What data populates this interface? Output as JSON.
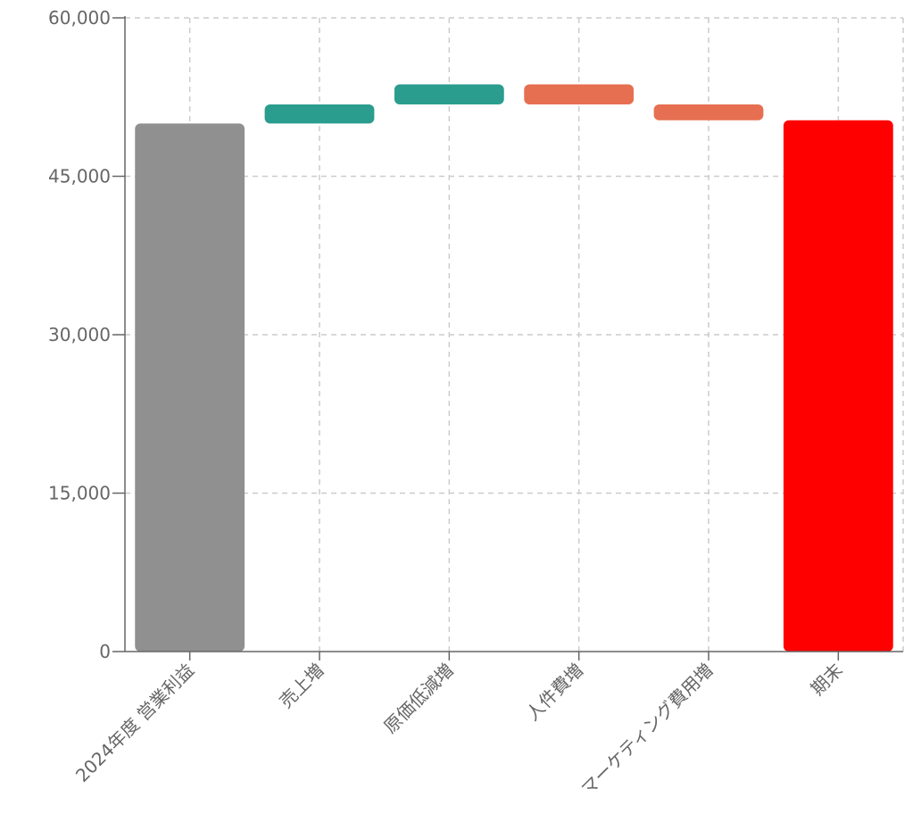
{
  "chart_data": {
    "type": "bar",
    "subtype": "waterfall",
    "title": "",
    "xlabel": "",
    "ylabel": "",
    "ylim": [
      0,
      60000
    ],
    "yticks": [
      0,
      15000,
      30000,
      45000,
      60000
    ],
    "ytick_labels": [
      "0",
      "15,000",
      "30,000",
      "45,000",
      "60,000"
    ],
    "grid": true,
    "categories": [
      "2024年度 営業利益",
      "売上増",
      "原価低減増",
      "人件費増",
      "マーケティング費用増",
      "期末"
    ],
    "bars": [
      {
        "category": "2024年度 営業利益",
        "kind": "total",
        "start": 0,
        "end": 50000,
        "color": "#909090"
      },
      {
        "category": "売上増",
        "kind": "increase",
        "start": 50000,
        "end": 51800,
        "color": "#2a9d8f"
      },
      {
        "category": "原価低減増",
        "kind": "increase",
        "start": 51800,
        "end": 53700,
        "color": "#2a9d8f"
      },
      {
        "category": "人件費増",
        "kind": "decrease",
        "start": 53700,
        "end": 51800,
        "color": "#e76f51"
      },
      {
        "category": "マーケティング費用増",
        "kind": "decrease",
        "start": 51800,
        "end": 50300,
        "color": "#e76f51"
      },
      {
        "category": "期末",
        "kind": "total",
        "start": 0,
        "end": 50300,
        "color": "#ff0000"
      }
    ]
  }
}
